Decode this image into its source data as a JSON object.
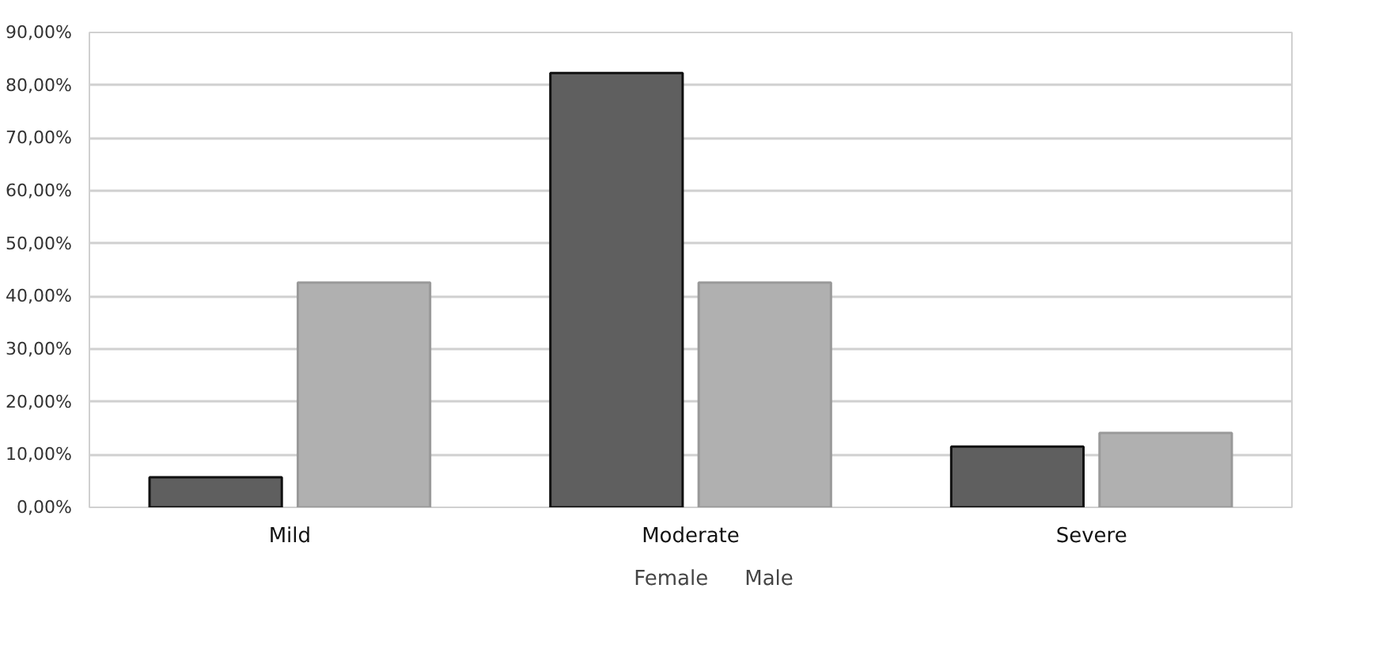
{
  "chart_data": {
    "type": "bar",
    "categories": [
      "Mild",
      "Moderate",
      "Severe"
    ],
    "series": [
      {
        "name": "Female",
        "color": "#5f5f5f",
        "values": [
          5.7,
          82.3,
          11.5
        ]
      },
      {
        "name": "Male",
        "color": "#b0b0b0",
        "values": [
          42.6,
          42.6,
          14.1
        ]
      }
    ],
    "ylim": [
      0,
      90
    ],
    "yticks": [
      {
        "value": 0,
        "label": "0,00%"
      },
      {
        "value": 10,
        "label": "10,00%"
      },
      {
        "value": 20,
        "label": "20,00%"
      },
      {
        "value": 30,
        "label": "30,00%"
      },
      {
        "value": 40,
        "label": "40,00%"
      },
      {
        "value": 50,
        "label": "50,00%"
      },
      {
        "value": 60,
        "label": "60,00%"
      },
      {
        "value": 70,
        "label": "70,00%"
      },
      {
        "value": 80,
        "label": "80,00%"
      },
      {
        "value": 90,
        "label": "90,00%"
      }
    ],
    "grid": "y",
    "legend": "bottom"
  }
}
